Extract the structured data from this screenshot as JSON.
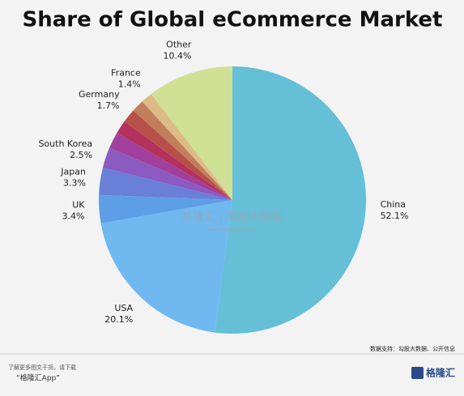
{
  "chart_data": {
    "type": "pie",
    "title": "Share of Global eCommerce Market",
    "categories": [
      "China",
      "USA",
      "UK",
      "Japan",
      "South Korea",
      null,
      null,
      "Germany",
      null,
      "France",
      "Other"
    ],
    "values": [
      52.1,
      20.1,
      3.4,
      3.3,
      2.5,
      2.0,
      1.6,
      1.7,
      1.5,
      1.4,
      10.4
    ],
    "value_labels": [
      "52.1%",
      "20.1%",
      "3.4%",
      "3.3%",
      "2.5%",
      null,
      null,
      "1.7%",
      null,
      "1.4%",
      "10.4%"
    ],
    "colors": [
      "#64bfd7",
      "#6fb9f0",
      "#5c9fe6",
      "#6a7fd8",
      "#8c5bc1",
      "#a13f9c",
      "#b3325d",
      "#b8504a",
      "#c27e5c",
      "#dcbb86",
      "#d0e095"
    ],
    "source": "数据支持：勾股大数据、公开信息",
    "watermark": "格隆汇 | 勾股大数据",
    "watermark_url": "www.gogudata.com"
  },
  "footer": {
    "line1": "了解更多图文干货，请下载",
    "line2": "“格隆汇App”",
    "logo": "格隆汇"
  }
}
